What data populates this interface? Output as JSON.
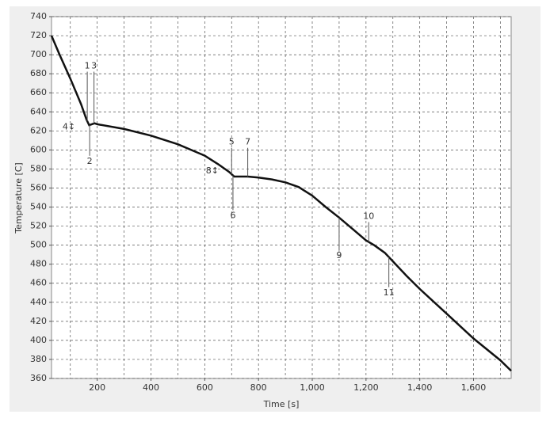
{
  "chart_data": {
    "type": "line",
    "x_label": "Time [s]",
    "y_label": "Temperature [C]",
    "x": [
      30,
      60,
      100,
      140,
      160,
      170,
      180,
      190,
      200,
      300,
      400,
      500,
      600,
      650,
      690,
      710,
      760,
      800,
      850,
      900,
      950,
      1000,
      1050,
      1100,
      1150,
      1200,
      1230,
      1270,
      1300,
      1350,
      1400,
      1500,
      1600,
      1700,
      1740
    ],
    "values": [
      720,
      700,
      675,
      648,
      632,
      626,
      627,
      628,
      627,
      622,
      615,
      606,
      594,
      585,
      577,
      572,
      572,
      571,
      569,
      566,
      561,
      552,
      540,
      529,
      517,
      505,
      500,
      492,
      483,
      468,
      454,
      428,
      402,
      379,
      368
    ],
    "color": "#111111",
    "xlim": [
      30,
      1740
    ],
    "ylim": [
      360,
      740
    ],
    "xticks": [
      200,
      400,
      600,
      800,
      {
        "value": 1000,
        "label": "1,000"
      },
      {
        "value": 1200,
        "label": "1,200"
      },
      {
        "value": 1400,
        "label": "1,400"
      },
      {
        "value": 1600,
        "label": "1,600"
      }
    ],
    "xgrid_minor": [
      100,
      300,
      500,
      700,
      900,
      1100,
      1300,
      1500,
      1700
    ],
    "yticks": [
      360,
      380,
      400,
      420,
      440,
      460,
      480,
      500,
      520,
      540,
      560,
      580,
      600,
      620,
      640,
      660,
      680,
      700,
      720,
      740
    ],
    "grid": true,
    "annotations": [
      {
        "text": "1",
        "x": 163,
        "y": 688,
        "leader": true
      },
      {
        "text": "3",
        "x": 188,
        "y": 688,
        "leader": true
      },
      {
        "text": "2",
        "x": 172,
        "y": 588,
        "leader": true
      },
      {
        "text": "4↕",
        "x": 95,
        "y": 624,
        "leader": false
      },
      {
        "text": "5",
        "x": 700,
        "y": 608,
        "leader": true
      },
      {
        "text": "7",
        "x": 760,
        "y": 608,
        "leader": true
      },
      {
        "text": "6",
        "x": 705,
        "y": 531,
        "leader": true
      },
      {
        "text": "8↕",
        "x": 628,
        "y": 578,
        "leader": false
      },
      {
        "text": "9",
        "x": 1100,
        "y": 489,
        "leader": true
      },
      {
        "text": "10",
        "x": 1210,
        "y": 530,
        "leader": true
      },
      {
        "text": "11",
        "x": 1285,
        "y": 450,
        "leader": true
      }
    ]
  }
}
